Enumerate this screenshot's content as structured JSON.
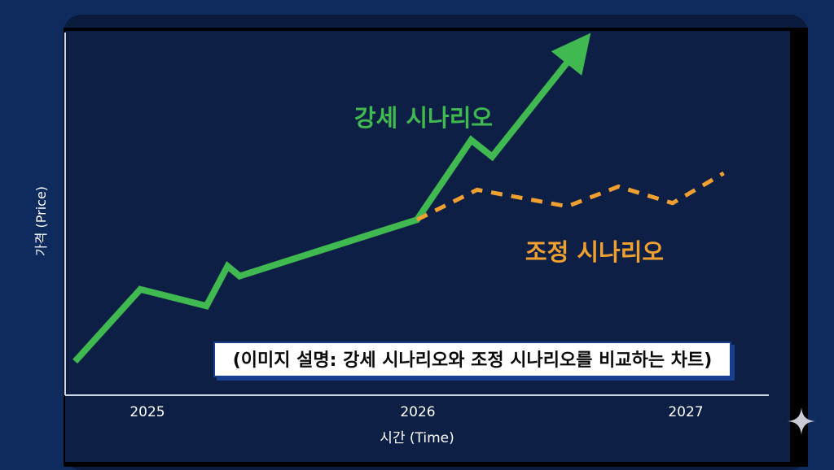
{
  "chart_data": {
    "type": "line",
    "xlabel": "시간 (Time)",
    "ylabel": "가격 (Price)",
    "x_ticks": [
      "2025",
      "2026",
      "2027"
    ],
    "xlim": [
      2024.83,
      2027.17
    ],
    "ylim": [
      0,
      100
    ],
    "grid": false,
    "series": [
      {
        "name": "강세 시나리오",
        "style": "solid",
        "color": "#3fb950",
        "arrow_end": true,
        "points": [
          [
            2024.87,
            6
          ],
          [
            2025.08,
            27
          ],
          [
            2025.3,
            22
          ],
          [
            2025.37,
            34
          ],
          [
            2025.41,
            31
          ],
          [
            2026.0,
            48
          ],
          [
            2026.18,
            72
          ],
          [
            2026.25,
            67
          ],
          [
            2026.54,
            100
          ]
        ]
      },
      {
        "name": "조정 시나리오",
        "style": "dashed",
        "color": "#f0a030",
        "points": [
          [
            2026.0,
            48
          ],
          [
            2026.2,
            57
          ],
          [
            2026.5,
            52
          ],
          [
            2026.67,
            58
          ],
          [
            2026.85,
            53
          ],
          [
            2027.02,
            62
          ]
        ]
      }
    ],
    "annotations": [
      {
        "text": "(이미지 설명: 강세 시나리오와 조정 시나리오를 비교하는 차트)"
      }
    ]
  }
}
